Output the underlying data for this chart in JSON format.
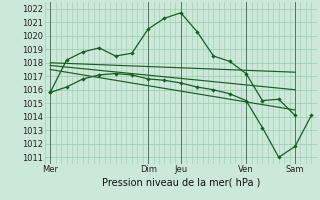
{
  "xlabel": "Pression niveau de la mer( hPa )",
  "ylim": [
    1010.5,
    1022.5
  ],
  "xlim": [
    0,
    100
  ],
  "yticks": [
    1011,
    1012,
    1013,
    1014,
    1015,
    1016,
    1017,
    1018,
    1019,
    1020,
    1021,
    1022
  ],
  "xtick_positions": [
    2,
    38,
    50,
    74,
    92
  ],
  "xtick_labels": [
    "Mer",
    "Dim",
    "Jeu",
    "Ven",
    "Sam"
  ],
  "vlines": [
    2,
    38,
    50,
    74,
    92
  ],
  "bg_color": "#cce8d8",
  "grid_color": "#99ccb0",
  "line_color": "#1a5c28",
  "line_top": {
    "x": [
      2,
      8,
      14,
      20,
      26,
      32,
      38,
      44,
      50,
      56,
      62,
      68,
      74,
      80,
      86,
      92
    ],
    "y": [
      1015.8,
      1018.2,
      1018.8,
      1019.1,
      1018.5,
      1018.7,
      1020.5,
      1021.3,
      1021.7,
      1020.3,
      1018.5,
      1018.1,
      1017.2,
      1015.2,
      1015.3,
      1014.1
    ]
  },
  "line_flat1": {
    "x": [
      2,
      92
    ],
    "y": [
      1018.0,
      1017.3
    ]
  },
  "line_flat2": {
    "x": [
      2,
      92
    ],
    "y": [
      1017.8,
      1016.0
    ]
  },
  "line_flat3": {
    "x": [
      2,
      92
    ],
    "y": [
      1017.5,
      1014.5
    ]
  },
  "line_bottom": {
    "x": [
      2,
      8,
      14,
      20,
      26,
      32,
      38,
      44,
      50,
      56,
      62,
      68,
      74,
      80,
      86,
      92,
      98
    ],
    "y": [
      1015.8,
      1016.2,
      1016.8,
      1017.1,
      1017.2,
      1017.1,
      1016.8,
      1016.7,
      1016.5,
      1016.2,
      1016.0,
      1015.7,
      1015.2,
      1013.2,
      1011.0,
      1011.8,
      1014.1
    ]
  }
}
